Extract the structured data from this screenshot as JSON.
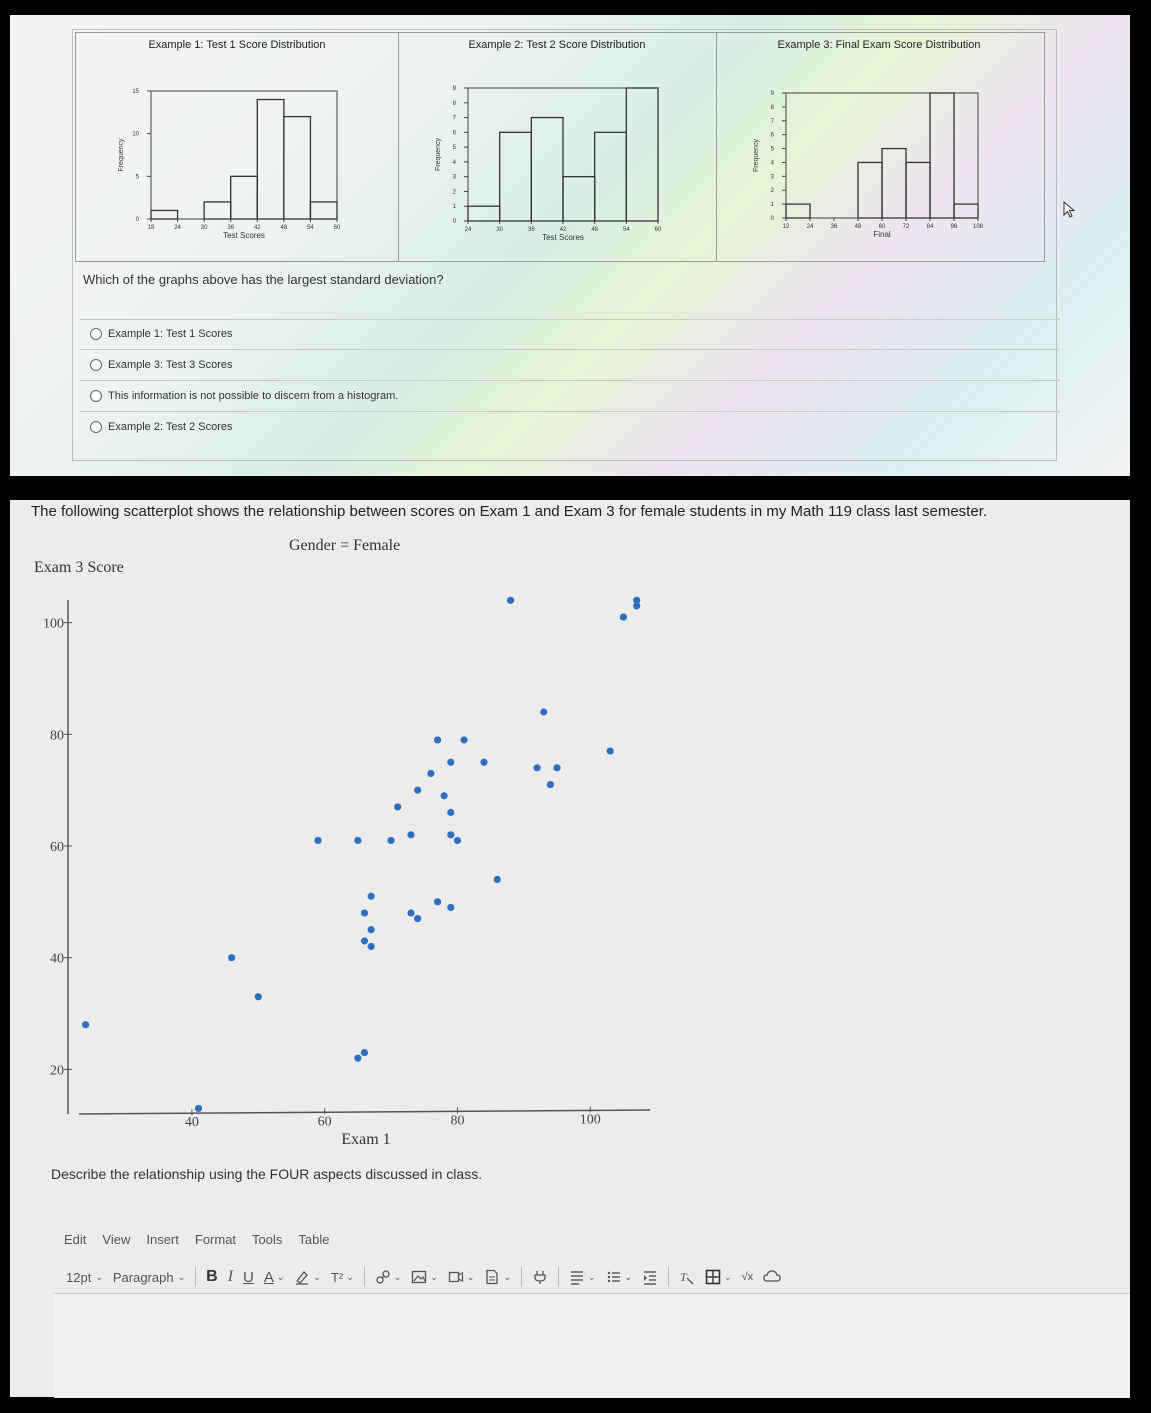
{
  "histograms": [
    {
      "title": "Example 1: Test 1 Score Distribution",
      "ylabel": "Frequency",
      "xlabel": "Test Scores",
      "y_ticks": [
        "15",
        "10",
        "5",
        "0"
      ],
      "x_ticks": [
        "18",
        "24",
        "30",
        "36",
        "42",
        "48",
        "54",
        "60"
      ],
      "chart_data": {
        "type": "bar",
        "bins": [
          "18-24",
          "24-30",
          "30-36",
          "36-42",
          "42-48",
          "48-54",
          "54-60"
        ],
        "values": [
          1,
          0,
          2,
          5,
          14,
          12,
          2
        ],
        "ylim": [
          0,
          15
        ]
      }
    },
    {
      "title": "Example 2: Test 2 Score Distribution",
      "ylabel": "Frequency",
      "xlabel": "Test Scores",
      "y_ticks": [
        "9",
        "8",
        "7",
        "6",
        "5",
        "4",
        "3",
        "2",
        "1",
        "0"
      ],
      "x_ticks": [
        "24",
        "30",
        "36",
        "42",
        "48",
        "54",
        "60"
      ],
      "chart_data": {
        "type": "bar",
        "bins": [
          "24-30",
          "30-36",
          "36-42",
          "42-48",
          "48-54",
          "54-60"
        ],
        "values": [
          1,
          6,
          7,
          3,
          6,
          9
        ],
        "ylim": [
          0,
          9
        ]
      }
    },
    {
      "title": "Example 3: Final Exam Score Distribution",
      "ylabel": "Frequency",
      "xlabel": "Final",
      "y_ticks": [
        "9",
        "8",
        "7",
        "6",
        "5",
        "4",
        "3",
        "2",
        "1",
        "0"
      ],
      "x_ticks": [
        "12",
        "24",
        "36",
        "48",
        "60",
        "72",
        "84",
        "96",
        "108"
      ],
      "chart_data": {
        "type": "bar",
        "bins": [
          "12-24",
          "24-36",
          "36-48",
          "48-60",
          "60-72",
          "72-84",
          "84-96",
          "96-108"
        ],
        "values": [
          1,
          0,
          0,
          4,
          5,
          4,
          9,
          1
        ],
        "ylim": [
          0,
          9
        ]
      }
    }
  ],
  "question1": {
    "text": "Which of the graphs above has the largest standard deviation?",
    "options": [
      "Example 1: Test 1 Scores",
      "Example 3: Test 3 Scores",
      "This information is not possible to discern from a histogram.",
      "Example 2: Test 2 Scores"
    ]
  },
  "scatter_intro": "The following scatterplot shows the relationship between scores on Exam 1 and Exam 3 for female students in my Math 119 class last semester.",
  "chart_data": {
    "type": "scatter",
    "title": "Gender = Female",
    "xlabel": "Exam 1",
    "ylabel": "Exam 3 Score",
    "x_ticks": [
      40,
      60,
      80,
      100
    ],
    "y_ticks": [
      20,
      40,
      60,
      80,
      100
    ],
    "xlim": [
      23,
      109
    ],
    "ylim": [
      12,
      108
    ],
    "points": [
      [
        24,
        28
      ],
      [
        41,
        13
      ],
      [
        46,
        40
      ],
      [
        50,
        33
      ],
      [
        59,
        61
      ],
      [
        65,
        61
      ],
      [
        65,
        22
      ],
      [
        66,
        23
      ],
      [
        66,
        48
      ],
      [
        66,
        43
      ],
      [
        67,
        42
      ],
      [
        67,
        45
      ],
      [
        67,
        51
      ],
      [
        70,
        61
      ],
      [
        71,
        67
      ],
      [
        73,
        48
      ],
      [
        73,
        62
      ],
      [
        74,
        47
      ],
      [
        74,
        70
      ],
      [
        76,
        73
      ],
      [
        77,
        79
      ],
      [
        77,
        50
      ],
      [
        78,
        69
      ],
      [
        79,
        75
      ],
      [
        79,
        66
      ],
      [
        79,
        62
      ],
      [
        80,
        61
      ],
      [
        79,
        49
      ],
      [
        81,
        79
      ],
      [
        84,
        75
      ],
      [
        86,
        54
      ],
      [
        88,
        104
      ],
      [
        92,
        74
      ],
      [
        93,
        84
      ],
      [
        94,
        71
      ],
      [
        95,
        74
      ],
      [
        103,
        77
      ],
      [
        105,
        101
      ],
      [
        107,
        103
      ],
      [
        107,
        104
      ]
    ]
  },
  "describe_prompt": "Describe the relationship using the FOUR aspects discussed in class.",
  "editor": {
    "menu": [
      "Edit",
      "View",
      "Insert",
      "Format",
      "Tools",
      "Table"
    ],
    "font_size": "12pt",
    "block_format": "Paragraph",
    "bold": "B",
    "italic": "I",
    "underline": "U",
    "text_color": "A",
    "superscript": "T²",
    "math": "√x"
  },
  "colors": {
    "dot": "#2f6fbf",
    "axis": "#444444",
    "panel": "#ececec"
  }
}
